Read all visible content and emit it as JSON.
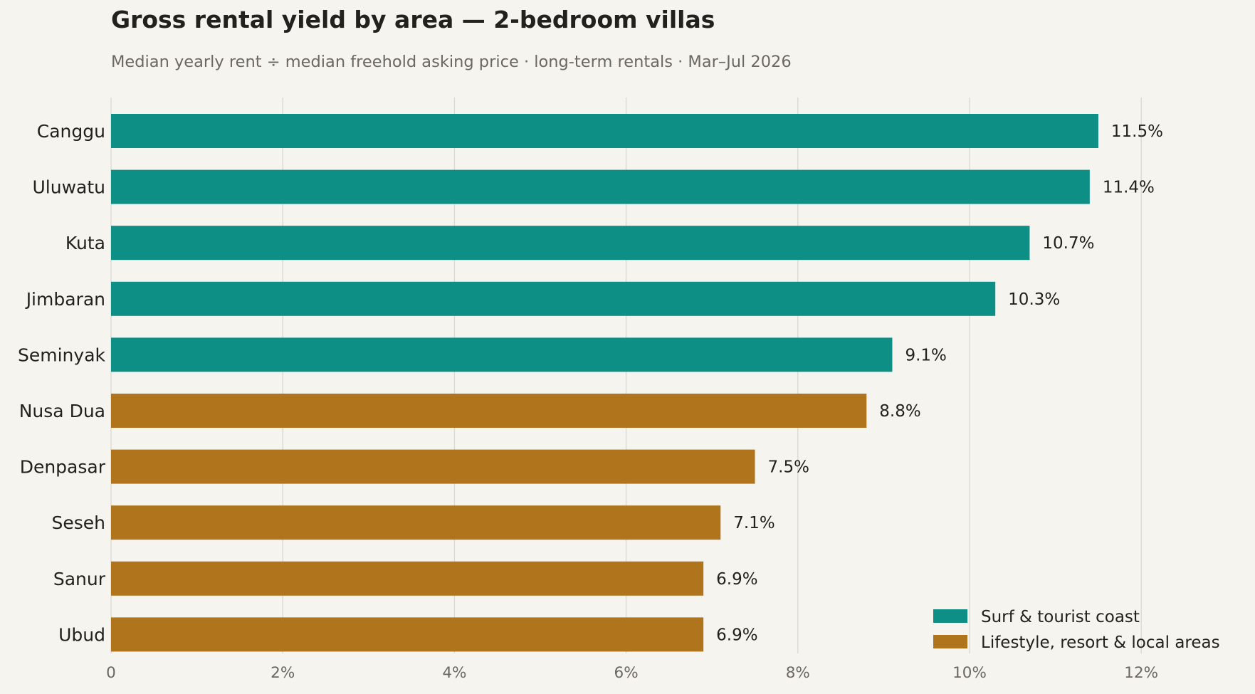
{
  "chart_data": {
    "type": "bar",
    "orientation": "horizontal",
    "title": "Gross rental yield by area — 2-bedroom villas",
    "subtitle": "Median yearly rent ÷ median freehold asking price · long-term rentals · Mar–Jul 2026",
    "xlabel": "",
    "ylabel": "",
    "xlim": [
      0,
      13
    ],
    "xticks": [
      0,
      2,
      4,
      6,
      8,
      10,
      12
    ],
    "xtick_labels": [
      "0",
      "2%",
      "4%",
      "6%",
      "8%",
      "10%",
      "12%"
    ],
    "grid": "vertical",
    "legend_position": "bottom-right",
    "categories": [
      "Canggu",
      "Uluwatu",
      "Kuta",
      "Jimbaran",
      "Seminyak",
      "Nusa Dua",
      "Denpasar",
      "Seseh",
      "Sanur",
      "Ubud"
    ],
    "values": [
      11.5,
      11.4,
      10.7,
      10.3,
      9.1,
      8.8,
      7.5,
      7.1,
      6.9,
      6.9
    ],
    "value_labels": [
      "11.5%",
      "11.4%",
      "10.7%",
      "10.3%",
      "9.1%",
      "8.8%",
      "7.5%",
      "7.1%",
      "6.9%",
      "6.9%"
    ],
    "groups": [
      "surf",
      "surf",
      "surf",
      "surf",
      "surf",
      "lifestyle",
      "lifestyle",
      "lifestyle",
      "lifestyle",
      "lifestyle"
    ],
    "series": [
      {
        "key": "surf",
        "name": "Surf & tourist coast",
        "color": "#0e8f86"
      },
      {
        "key": "lifestyle",
        "name": "Lifestyle, resort & local areas",
        "color": "#b0751c"
      }
    ]
  }
}
